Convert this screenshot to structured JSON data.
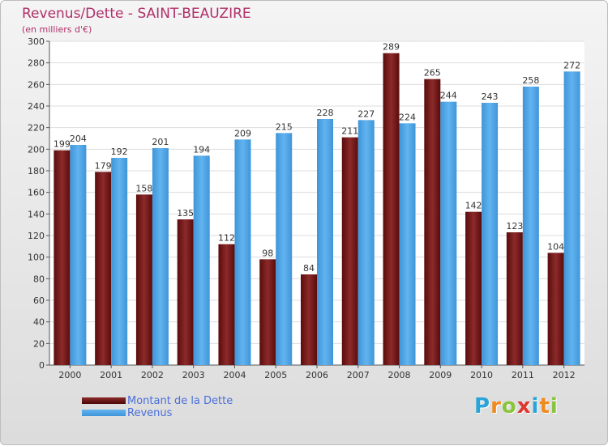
{
  "chart_data": {
    "type": "bar",
    "title": "Revenus/Dette - SAINT-BEAUZIRE",
    "subtitle": "(en milliers d'€)",
    "categories": [
      "2000",
      "2001",
      "2002",
      "2003",
      "2004",
      "2005",
      "2006",
      "2007",
      "2008",
      "2009",
      "2010",
      "2011",
      "2012"
    ],
    "series": [
      {
        "name": "Montant de la Dette",
        "color": "#7a1a1a",
        "values": [
          199,
          179,
          158,
          135,
          112,
          98,
          84,
          211,
          289,
          265,
          142,
          123,
          104
        ]
      },
      {
        "name": "Revenus",
        "color": "#4aa3e6",
        "values": [
          204,
          192,
          201,
          194,
          209,
          215,
          228,
          227,
          224,
          244,
          243,
          258,
          272
        ]
      }
    ],
    "ylim": [
      0,
      300
    ],
    "yticks": [
      0,
      20,
      40,
      60,
      80,
      100,
      120,
      140,
      160,
      180,
      200,
      220,
      240,
      260,
      280,
      300
    ],
    "grid": true,
    "legend_position": "bottom-left"
  },
  "logo": {
    "letters": [
      "P",
      "r",
      "o",
      "x",
      "i",
      "t",
      "i"
    ],
    "colors": [
      "#2aa4d8",
      "#f08a1c",
      "#8ac33c",
      "#e0362e",
      "#2aa4d8",
      "#f08a1c",
      "#8ac33c"
    ]
  }
}
